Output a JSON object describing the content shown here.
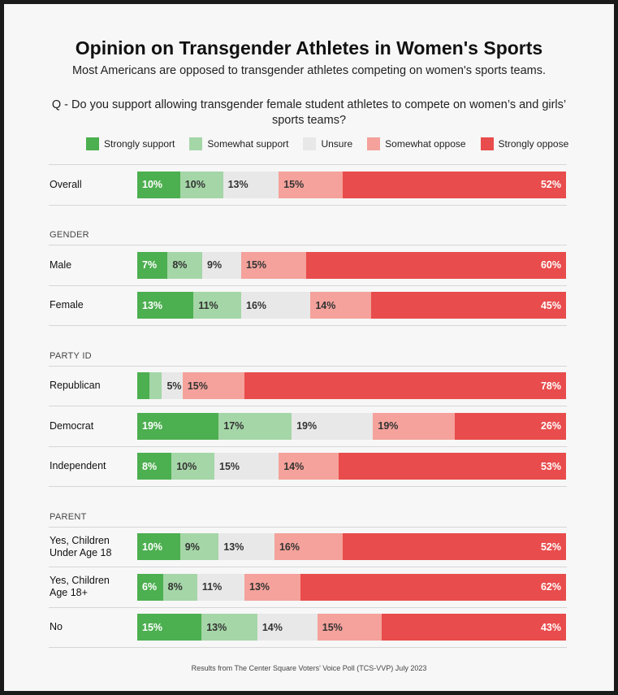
{
  "title": "Opinion on Transgender Athletes in Women's Sports",
  "subtitle": "Most Americans are opposed to transgender athletes competing on women's sports teams.",
  "question_line1": "Q - Do you support allowing transgender female student athletes to compete on women’s and girls’",
  "question_line2": "sports teams?",
  "footer": "Results from The Center Square Voters' Voice Poll (TCS-VVP) July 2023",
  "chart_data": {
    "type": "bar",
    "orientation": "horizontal",
    "stacked": true,
    "normalized": true,
    "legend_position": "top",
    "categories": [
      "Strongly support",
      "Somewhat support",
      "Unsure",
      "Somewhat oppose",
      "Strongly oppose"
    ],
    "colors": [
      "#4caf50",
      "#a5d6a7",
      "#e8e8e8",
      "#f4a29b",
      "#e84c4c"
    ],
    "text_colors": [
      "#ffffff",
      "#333333",
      "#333333",
      "#333333",
      "#ffffff"
    ],
    "groups": [
      {
        "section": "",
        "rows": [
          {
            "label": "Overall",
            "values": [
              10,
              10,
              13,
              15,
              52
            ],
            "labels": [
              "10%",
              "10%",
              "13%",
              "15%",
              "52%"
            ]
          }
        ]
      },
      {
        "section": "GENDER",
        "rows": [
          {
            "label": "Male",
            "values": [
              7,
              8,
              9,
              15,
              60
            ],
            "labels": [
              "7%",
              "8%",
              "9%",
              "15%",
              "60%"
            ]
          },
          {
            "label": "Female",
            "values": [
              13,
              11,
              16,
              14,
              45
            ],
            "labels": [
              "13%",
              "11%",
              "16%",
              "14%",
              "45%"
            ]
          }
        ]
      },
      {
        "section": "PARTY ID",
        "rows": [
          {
            "label": "Republican",
            "values": [
              3,
              3,
              5,
              15,
              78
            ],
            "labels": [
              "",
              "",
              "5%",
              "15%",
              "78%"
            ]
          },
          {
            "label": "Democrat",
            "values": [
              19,
              17,
              19,
              19,
              26
            ],
            "labels": [
              "19%",
              "17%",
              "19%",
              "19%",
              "26%"
            ]
          },
          {
            "label": "Independent",
            "values": [
              8,
              10,
              15,
              14,
              53
            ],
            "labels": [
              "8%",
              "10%",
              "15%",
              "14%",
              "53%"
            ]
          }
        ]
      },
      {
        "section": "PARENT",
        "rows": [
          {
            "label": "Yes, Children\nUnder Age 18",
            "values": [
              10,
              9,
              13,
              16,
              52
            ],
            "labels": [
              "10%",
              "9%",
              "13%",
              "16%",
              "52%"
            ]
          },
          {
            "label": "Yes, Children\nAge 18+",
            "values": [
              6,
              8,
              11,
              13,
              62
            ],
            "labels": [
              "6%",
              "8%",
              "11%",
              "13%",
              "62%"
            ]
          },
          {
            "label": "No",
            "values": [
              15,
              13,
              14,
              15,
              43
            ],
            "labels": [
              "15%",
              "13%",
              "14%",
              "15%",
              "43%"
            ]
          }
        ]
      }
    ]
  }
}
